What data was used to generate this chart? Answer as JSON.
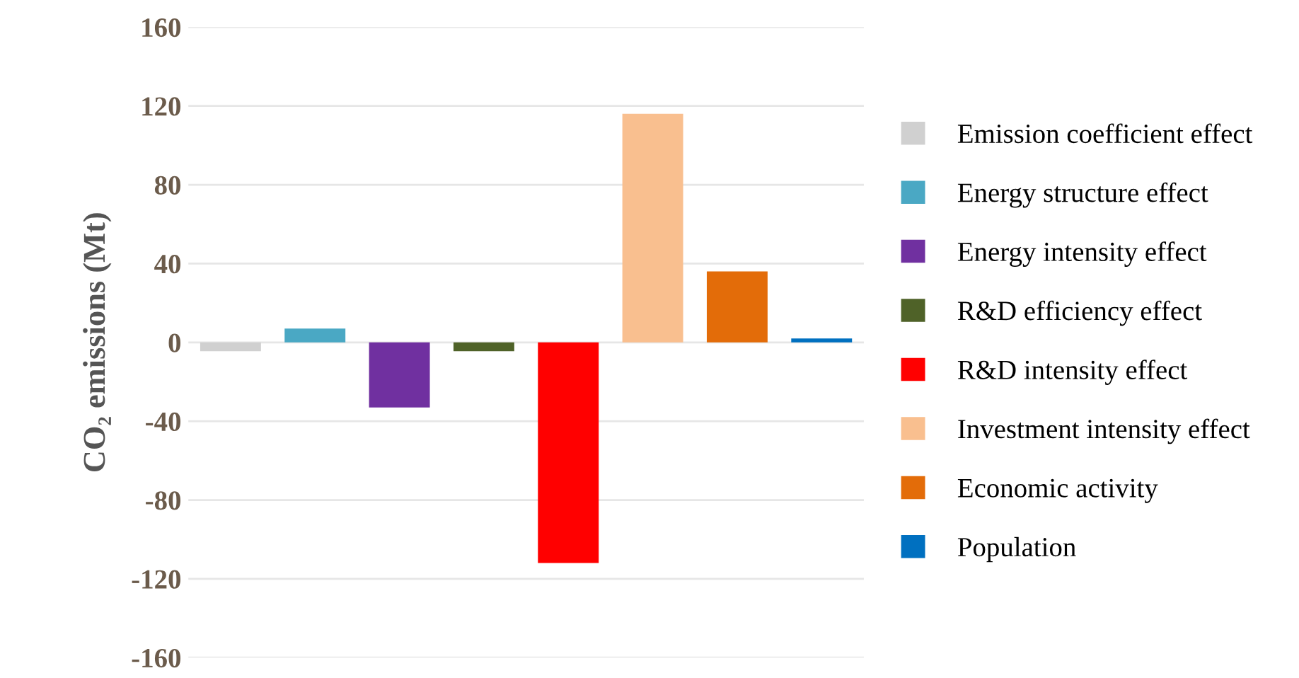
{
  "chart_data": {
    "type": "bar",
    "ylabel": "CO₂ emissions (Mt)",
    "categories": [
      null,
      null,
      null,
      null,
      null,
      null,
      null,
      null
    ],
    "series": [
      {
        "name": "Emission coefficient effect",
        "color": "#d0d0d0",
        "values": [
          -4.5,
          null,
          null,
          null,
          null,
          null,
          null,
          null
        ]
      },
      {
        "name": "Energy structure effect",
        "color": "#4aa8c4",
        "values": [
          null,
          7,
          null,
          null,
          null,
          null,
          null,
          null
        ]
      },
      {
        "name": "Energy intensity effect",
        "color": "#7030a0",
        "values": [
          null,
          null,
          -33,
          null,
          null,
          null,
          null,
          null
        ]
      },
      {
        "name": "R&D efficiency effect",
        "color": "#4f6228",
        "values": [
          null,
          null,
          null,
          -4.5,
          null,
          null,
          null,
          null
        ]
      },
      {
        "name": "R&D intensity effect",
        "color": "#ff0000",
        "values": [
          null,
          null,
          null,
          null,
          -112,
          null,
          null,
          null
        ]
      },
      {
        "name": "Investment intensity effect",
        "color": "#f9bf8f",
        "values": [
          null,
          null,
          null,
          null,
          null,
          116,
          null,
          null
        ]
      },
      {
        "name": "Economic activity",
        "color": "#e36c09",
        "values": [
          null,
          null,
          null,
          null,
          null,
          null,
          36,
          null
        ]
      },
      {
        "name": "Population",
        "color": "#0070c0",
        "values": [
          null,
          null,
          null,
          null,
          null,
          null,
          null,
          2
        ]
      }
    ],
    "ylim": [
      -160,
      160
    ],
    "yticks": [
      -160,
      -120,
      -80,
      -40,
      0,
      40,
      80,
      120,
      160
    ],
    "grid": "y",
    "legend": "right"
  }
}
